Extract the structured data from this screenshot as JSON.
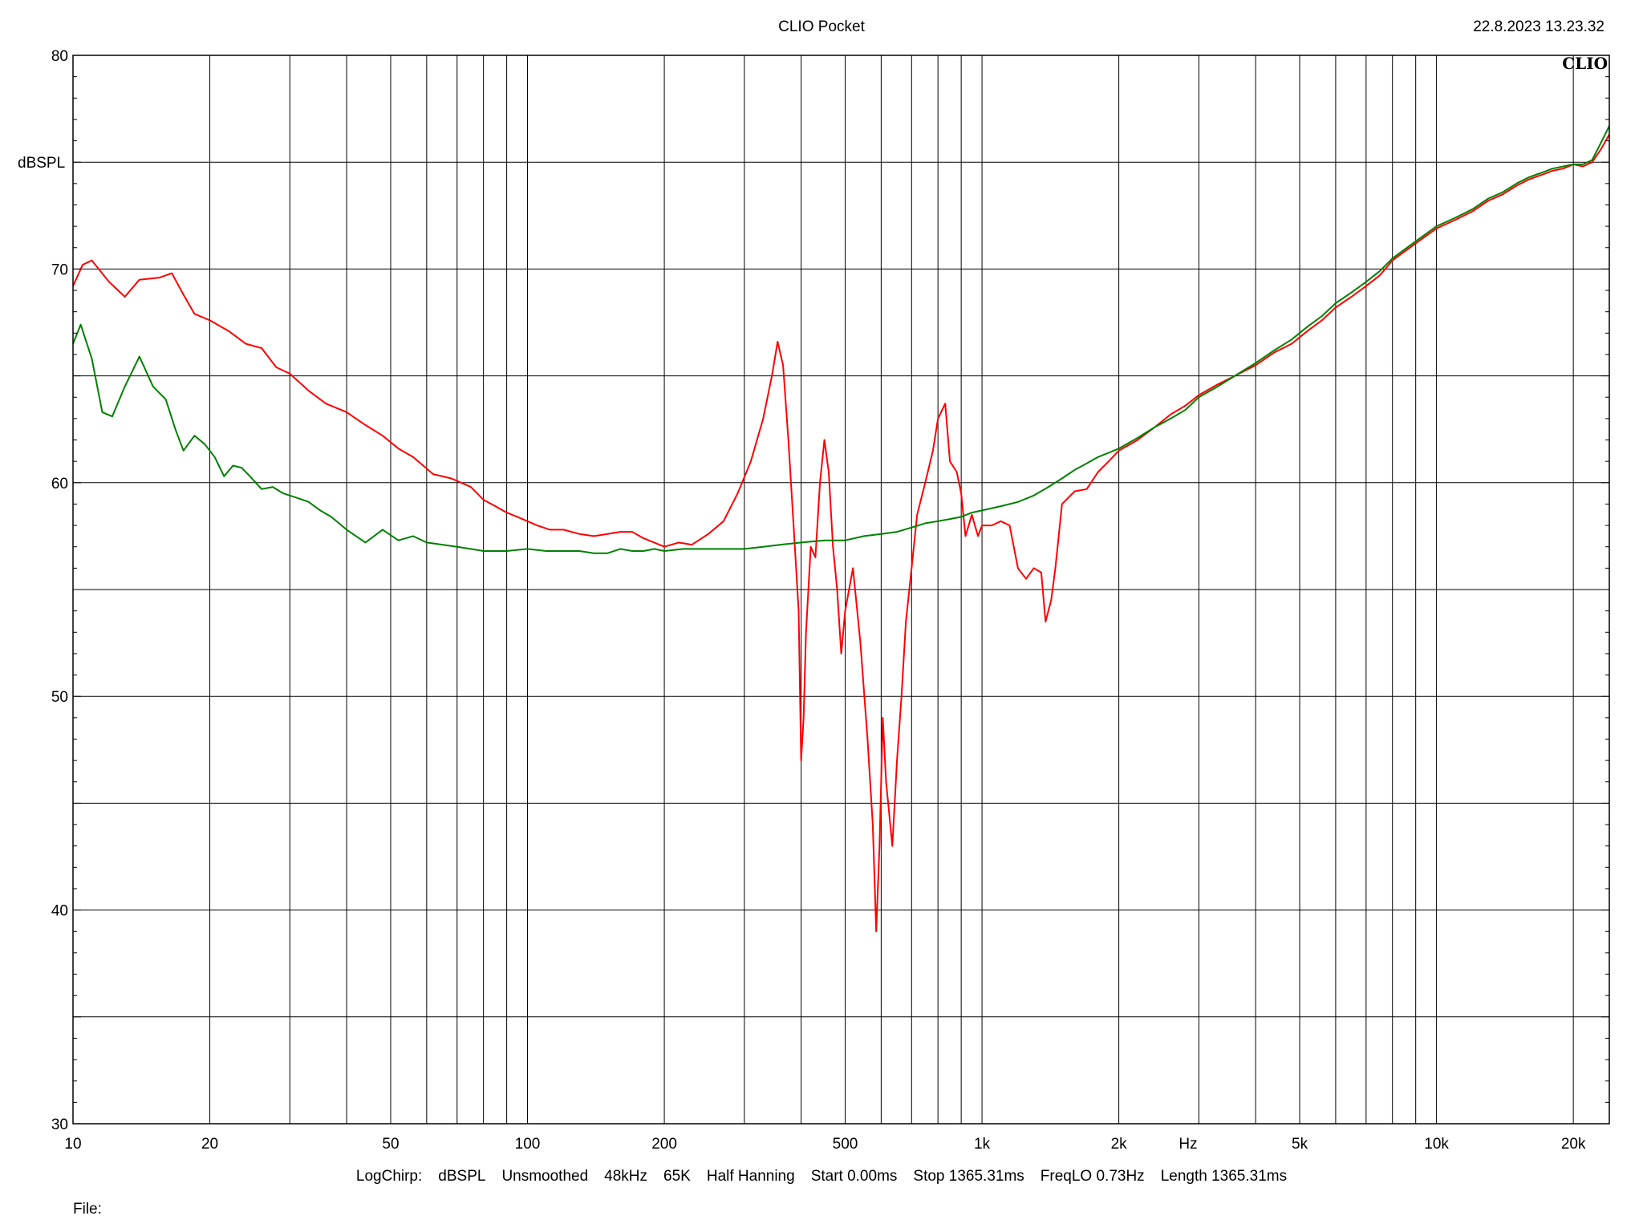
{
  "header": {
    "title": "CLIO Pocket",
    "timestamp": "22.8.2023 13.23.32",
    "logo": "CLIO"
  },
  "footer": {
    "measurement_info": [
      "LogChirp:",
      "dBSPL",
      "Unsmoothed",
      "48kHz",
      "65K",
      "Half Hanning",
      "Start 0.00ms",
      "Stop 1365.31ms",
      "FreqLO 0.73Hz",
      "Length 1365.31ms"
    ],
    "file_label": "File:"
  },
  "chart_data": {
    "type": "line",
    "title": "CLIO Pocket",
    "xlabel": "Hz",
    "ylabel": "dBSPL",
    "xscale": "log",
    "xlim": [
      10,
      24000
    ],
    "ylim": [
      30,
      80
    ],
    "grid": true,
    "x_tick_values": [
      10,
      20,
      50,
      100,
      200,
      500,
      1000,
      2000,
      5000,
      10000,
      20000
    ],
    "x_tick_labels": [
      "10",
      "20",
      "50",
      "100",
      "200",
      "500",
      "1k",
      "2k",
      "5k",
      "10k",
      "20k"
    ],
    "x_minor_grid": [
      30,
      40,
      60,
      70,
      80,
      90,
      300,
      400,
      600,
      700,
      800,
      900,
      3000,
      4000,
      6000,
      7000,
      8000,
      9000
    ],
    "y_tick_values": [
      30,
      40,
      50,
      60,
      70,
      80
    ],
    "y_tick_labels": [
      "30",
      "40",
      "50",
      "60",
      "70",
      "80"
    ],
    "y_minor_grid": [
      35,
      45,
      55,
      65,
      75
    ],
    "series": [
      {
        "color": "#ff0000",
        "points": [
          [
            10,
            69.2
          ],
          [
            10.5,
            70.2
          ],
          [
            11,
            70.4
          ],
          [
            12,
            69.4
          ],
          [
            13,
            68.7
          ],
          [
            14,
            69.5
          ],
          [
            15.5,
            69.6
          ],
          [
            16.5,
            69.8
          ],
          [
            17.5,
            68.8
          ],
          [
            18.5,
            67.9
          ],
          [
            20,
            67.6
          ],
          [
            22,
            67.1
          ],
          [
            24,
            66.5
          ],
          [
            26,
            66.3
          ],
          [
            28,
            65.4
          ],
          [
            30,
            65.1
          ],
          [
            33,
            64.3
          ],
          [
            36,
            63.7
          ],
          [
            40,
            63.3
          ],
          [
            44,
            62.7
          ],
          [
            48,
            62.2
          ],
          [
            52,
            61.6
          ],
          [
            56,
            61.2
          ],
          [
            62,
            60.4
          ],
          [
            68,
            60.2
          ],
          [
            75,
            59.8
          ],
          [
            80,
            59.2
          ],
          [
            85,
            58.9
          ],
          [
            90,
            58.6
          ],
          [
            95,
            58.4
          ],
          [
            100,
            58.2
          ],
          [
            105,
            58.0
          ],
          [
            112,
            57.8
          ],
          [
            120,
            57.8
          ],
          [
            130,
            57.6
          ],
          [
            140,
            57.5
          ],
          [
            150,
            57.6
          ],
          [
            160,
            57.7
          ],
          [
            170,
            57.7
          ],
          [
            180,
            57.4
          ],
          [
            190,
            57.2
          ],
          [
            200,
            57.0
          ],
          [
            215,
            57.2
          ],
          [
            230,
            57.1
          ],
          [
            250,
            57.6
          ],
          [
            270,
            58.2
          ],
          [
            290,
            59.5
          ],
          [
            310,
            61.0
          ],
          [
            330,
            63.0
          ],
          [
            345,
            65.0
          ],
          [
            355,
            66.6
          ],
          [
            365,
            65.5
          ],
          [
            375,
            62.0
          ],
          [
            385,
            58.0
          ],
          [
            395,
            54.0
          ],
          [
            400,
            47.0
          ],
          [
            405,
            49.0
          ],
          [
            410,
            53.0
          ],
          [
            420,
            57.0
          ],
          [
            430,
            56.5
          ],
          [
            440,
            60.0
          ],
          [
            450,
            62.0
          ],
          [
            460,
            60.5
          ],
          [
            470,
            57.0
          ],
          [
            480,
            55.0
          ],
          [
            490,
            52.0
          ],
          [
            500,
            54.0
          ],
          [
            520,
            56.0
          ],
          [
            540,
            52.5
          ],
          [
            560,
            48.0
          ],
          [
            575,
            44.0
          ],
          [
            585,
            39.0
          ],
          [
            595,
            43.0
          ],
          [
            605,
            49.0
          ],
          [
            615,
            46.0
          ],
          [
            625,
            44.5
          ],
          [
            635,
            43.0
          ],
          [
            650,
            47.0
          ],
          [
            665,
            50.0
          ],
          [
            680,
            53.5
          ],
          [
            700,
            56.0
          ],
          [
            720,
            58.5
          ],
          [
            750,
            60.0
          ],
          [
            780,
            61.5
          ],
          [
            800,
            63.0
          ],
          [
            830,
            63.7
          ],
          [
            850,
            61.0
          ],
          [
            880,
            60.5
          ],
          [
            900,
            59.5
          ],
          [
            920,
            57.5
          ],
          [
            950,
            58.5
          ],
          [
            980,
            57.5
          ],
          [
            1000,
            58.0
          ],
          [
            1050,
            58.0
          ],
          [
            1100,
            58.2
          ],
          [
            1150,
            58.0
          ],
          [
            1200,
            56.0
          ],
          [
            1250,
            55.5
          ],
          [
            1300,
            56.0
          ],
          [
            1350,
            55.8
          ],
          [
            1380,
            53.5
          ],
          [
            1420,
            54.5
          ],
          [
            1450,
            56.0
          ],
          [
            1500,
            59.0
          ],
          [
            1600,
            59.6
          ],
          [
            1700,
            59.7
          ],
          [
            1800,
            60.5
          ],
          [
            1900,
            61.0
          ],
          [
            2000,
            61.5
          ],
          [
            2200,
            62.0
          ],
          [
            2400,
            62.6
          ],
          [
            2600,
            63.2
          ],
          [
            2800,
            63.6
          ],
          [
            3000,
            64.1
          ],
          [
            3300,
            64.6
          ],
          [
            3600,
            65.0
          ],
          [
            4000,
            65.5
          ],
          [
            4400,
            66.1
          ],
          [
            4800,
            66.5
          ],
          [
            5200,
            67.1
          ],
          [
            5600,
            67.6
          ],
          [
            6000,
            68.2
          ],
          [
            6500,
            68.7
          ],
          [
            7000,
            69.2
          ],
          [
            7500,
            69.7
          ],
          [
            8000,
            70.4
          ],
          [
            9000,
            71.2
          ],
          [
            10000,
            71.9
          ],
          [
            11000,
            72.3
          ],
          [
            12000,
            72.7
          ],
          [
            13000,
            73.2
          ],
          [
            14000,
            73.5
          ],
          [
            15000,
            73.9
          ],
          [
            16000,
            74.2
          ],
          [
            17000,
            74.4
          ],
          [
            18000,
            74.6
          ],
          [
            19000,
            74.7
          ],
          [
            20000,
            74.9
          ],
          [
            21000,
            74.8
          ],
          [
            22000,
            75.0
          ],
          [
            23000,
            75.6
          ],
          [
            24000,
            76.3
          ]
        ]
      },
      {
        "color": "#008000",
        "points": [
          [
            10,
            66.5
          ],
          [
            10.4,
            67.4
          ],
          [
            11,
            65.8
          ],
          [
            11.6,
            63.3
          ],
          [
            12.2,
            63.1
          ],
          [
            13,
            64.5
          ],
          [
            14,
            65.9
          ],
          [
            15,
            64.5
          ],
          [
            16,
            63.9
          ],
          [
            16.8,
            62.5
          ],
          [
            17.5,
            61.5
          ],
          [
            18.5,
            62.2
          ],
          [
            19.5,
            61.8
          ],
          [
            20.5,
            61.2
          ],
          [
            21.5,
            60.3
          ],
          [
            22.5,
            60.8
          ],
          [
            23.5,
            60.7
          ],
          [
            24.5,
            60.3
          ],
          [
            26,
            59.7
          ],
          [
            27.5,
            59.8
          ],
          [
            29,
            59.5
          ],
          [
            31,
            59.3
          ],
          [
            33,
            59.1
          ],
          [
            35,
            58.7
          ],
          [
            37,
            58.4
          ],
          [
            40,
            57.8
          ],
          [
            44,
            57.2
          ],
          [
            48,
            57.8
          ],
          [
            52,
            57.3
          ],
          [
            56,
            57.5
          ],
          [
            60,
            57.2
          ],
          [
            65,
            57.1
          ],
          [
            70,
            57.0
          ],
          [
            75,
            56.9
          ],
          [
            80,
            56.8
          ],
          [
            90,
            56.8
          ],
          [
            100,
            56.9
          ],
          [
            110,
            56.8
          ],
          [
            120,
            56.8
          ],
          [
            130,
            56.8
          ],
          [
            140,
            56.7
          ],
          [
            150,
            56.7
          ],
          [
            160,
            56.9
          ],
          [
            170,
            56.8
          ],
          [
            180,
            56.8
          ],
          [
            190,
            56.9
          ],
          [
            200,
            56.8
          ],
          [
            220,
            56.9
          ],
          [
            240,
            56.9
          ],
          [
            260,
            56.9
          ],
          [
            280,
            56.9
          ],
          [
            300,
            56.9
          ],
          [
            330,
            57.0
          ],
          [
            360,
            57.1
          ],
          [
            400,
            57.2
          ],
          [
            450,
            57.3
          ],
          [
            500,
            57.3
          ],
          [
            550,
            57.5
          ],
          [
            600,
            57.6
          ],
          [
            650,
            57.7
          ],
          [
            700,
            57.9
          ],
          [
            750,
            58.1
          ],
          [
            800,
            58.2
          ],
          [
            850,
            58.3
          ],
          [
            900,
            58.4
          ],
          [
            950,
            58.6
          ],
          [
            1000,
            58.7
          ],
          [
            1100,
            58.9
          ],
          [
            1200,
            59.1
          ],
          [
            1300,
            59.4
          ],
          [
            1400,
            59.8
          ],
          [
            1500,
            60.2
          ],
          [
            1600,
            60.6
          ],
          [
            1700,
            60.9
          ],
          [
            1800,
            61.2
          ],
          [
            1900,
            61.4
          ],
          [
            2000,
            61.6
          ],
          [
            2200,
            62.1
          ],
          [
            2400,
            62.6
          ],
          [
            2600,
            63.0
          ],
          [
            2800,
            63.4
          ],
          [
            3000,
            64.0
          ],
          [
            3300,
            64.5
          ],
          [
            3600,
            65.0
          ],
          [
            4000,
            65.6
          ],
          [
            4400,
            66.2
          ],
          [
            4800,
            66.7
          ],
          [
            5200,
            67.3
          ],
          [
            5600,
            67.8
          ],
          [
            6000,
            68.4
          ],
          [
            6500,
            68.9
          ],
          [
            7000,
            69.4
          ],
          [
            7500,
            69.9
          ],
          [
            8000,
            70.5
          ],
          [
            9000,
            71.3
          ],
          [
            10000,
            72.0
          ],
          [
            11000,
            72.4
          ],
          [
            12000,
            72.8
          ],
          [
            13000,
            73.3
          ],
          [
            14000,
            73.6
          ],
          [
            15000,
            74.0
          ],
          [
            16000,
            74.3
          ],
          [
            17000,
            74.5
          ],
          [
            18000,
            74.7
          ],
          [
            19000,
            74.8
          ],
          [
            20000,
            74.9
          ],
          [
            21000,
            74.9
          ],
          [
            22000,
            75.1
          ],
          [
            23000,
            75.9
          ],
          [
            24000,
            76.7
          ]
        ]
      }
    ]
  }
}
